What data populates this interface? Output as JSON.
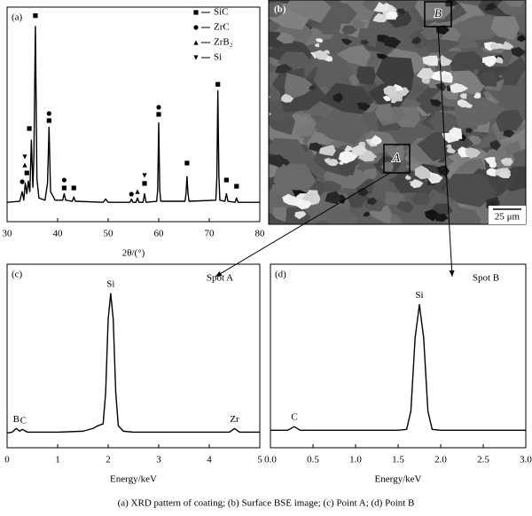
{
  "chart_data": [
    {
      "type": "line",
      "panel": "(a)",
      "xlabel": "2θ/(°)",
      "xlim": [
        30,
        80
      ],
      "xticks": [
        30,
        40,
        50,
        60,
        70,
        80
      ],
      "ylim": [
        0,
        100
      ],
      "color": "#000000",
      "x": [
        30,
        32.5,
        33.0,
        33.3,
        33.6,
        33.9,
        34.2,
        34.5,
        34.8,
        35.1,
        35.3,
        35.6,
        35.9,
        36.3,
        37.5,
        38.0,
        38.3,
        38.6,
        39.5,
        41.0,
        41.3,
        41.6,
        42.9,
        43.2,
        43.5,
        49.0,
        49.5,
        50.0,
        54.3,
        54.6,
        54.9,
        55.5,
        55.8,
        56.1,
        56.9,
        57.2,
        57.5,
        59.6,
        59.8,
        60.0,
        60.2,
        60.4,
        65.2,
        65.4,
        65.6,
        65.8,
        66.0,
        71.3,
        71.5,
        71.7,
        71.9,
        72.1,
        73.1,
        73.4,
        73.7,
        75.1,
        75.4,
        75.7,
        80
      ],
      "values": [
        9,
        9.5,
        14,
        10,
        18,
        13,
        19,
        14,
        38,
        16,
        30,
        91,
        20,
        11,
        10,
        18,
        44,
        14,
        10,
        10,
        13,
        10,
        9.5,
        11.5,
        9.5,
        9,
        10.5,
        9,
        9,
        10.5,
        9,
        9,
        11,
        9,
        9,
        13,
        9,
        9.5,
        15,
        46,
        15,
        9.5,
        9.5,
        13,
        21,
        13,
        9.5,
        10,
        20,
        61,
        22,
        10,
        9.5,
        13,
        9.5,
        9,
        11,
        9,
        9
      ],
      "phases": [
        {
          "name": "SiC",
          "marker": "square",
          "x": [
            33.9,
            34.4,
            35.6,
            38.3,
            41.3,
            43.2,
            57.2,
            60.0,
            65.6,
            71.7,
            73.4,
            75.4
          ],
          "y": [
            22.7,
            43.4,
            96,
            47.1,
            15.7,
            15.7,
            17.8,
            50,
            27.3,
            64,
            19.4,
            16.5
          ]
        },
        {
          "name": "ZrC",
          "marker": "circle",
          "x": [
            33.0,
            38.3,
            41.3,
            54.6,
            60.0
          ],
          "y": [
            18.6,
            50.4,
            19.4,
            12.8,
            53.3
          ]
        },
        {
          "name": "ZrB₂",
          "marker": "triangle-up",
          "x": [
            33.5,
            55.8
          ],
          "y": [
            26.4,
            14
          ]
        },
        {
          "name": "Si",
          "marker": "triangle-down",
          "x": [
            33.5,
            57.2
          ],
          "y": [
            30.2,
            21.5
          ]
        }
      ]
    },
    {
      "type": "line",
      "panel": "(c)",
      "spot": "Spot A",
      "xlabel": "Energy/keV",
      "xlim": [
        0,
        5
      ],
      "xticks": [
        0,
        1,
        2,
        3,
        4,
        5
      ],
      "ylim": [
        0,
        100
      ],
      "color": "#000000",
      "x": [
        0,
        0.1,
        0.18,
        0.25,
        0.3,
        0.4,
        1.0,
        1.5,
        1.7,
        1.8,
        1.9,
        1.95,
        2.0,
        2.05,
        2.1,
        2.15,
        2.2,
        2.3,
        2.5,
        3.0,
        4.0,
        4.4,
        4.5,
        4.6,
        5.0
      ],
      "values": [
        8,
        8.5,
        10.5,
        9,
        10,
        8.5,
        8.5,
        9,
        10.5,
        12,
        13,
        30,
        70,
        84,
        70,
        30,
        12,
        9,
        8.5,
        8.5,
        8.5,
        8.5,
        10.5,
        8.5,
        8.5
      ],
      "peak_labels": [
        {
          "label": "B",
          "x": 0.18
        },
        {
          "label": "C",
          "x": 0.32
        },
        {
          "label": "Si",
          "x": 2.05
        },
        {
          "label": "Zr",
          "x": 4.5
        }
      ]
    },
    {
      "type": "line",
      "panel": "(d)",
      "spot": "Spot B",
      "xlabel": "Energy/keV",
      "xlim": [
        0,
        3
      ],
      "xticks": [
        {
          "value": 0,
          "label": "0.0"
        },
        0.5,
        {
          "value": 1,
          "label": "1.0"
        },
        1.5,
        {
          "value": 2,
          "label": "2.0"
        },
        2.5,
        {
          "value": 3,
          "label": "3.0"
        }
      ],
      "ylim": [
        0,
        100
      ],
      "color": "#000000",
      "x": [
        0,
        0.2,
        0.28,
        0.35,
        0.5,
        1.0,
        1.5,
        1.6,
        1.65,
        1.7,
        1.75,
        1.8,
        1.85,
        1.9,
        2.0,
        2.5,
        3.0
      ],
      "values": [
        9.5,
        9.5,
        11.5,
        9.5,
        9.5,
        9.5,
        9.5,
        10,
        20,
        60,
        78,
        60,
        20,
        10,
        9.5,
        9.5,
        9.5
      ],
      "peak_labels": [
        {
          "label": "C",
          "x": 0.28
        },
        {
          "label": "Si",
          "x": 1.75
        }
      ]
    }
  ],
  "image": {
    "panel": "(b)",
    "scale_bar": "25 μm",
    "regions": [
      "A",
      "B"
    ]
  },
  "caption": "(a) XRD pattern of coating; (b) Surface BSE image; (c) Point A; (d) Point B"
}
